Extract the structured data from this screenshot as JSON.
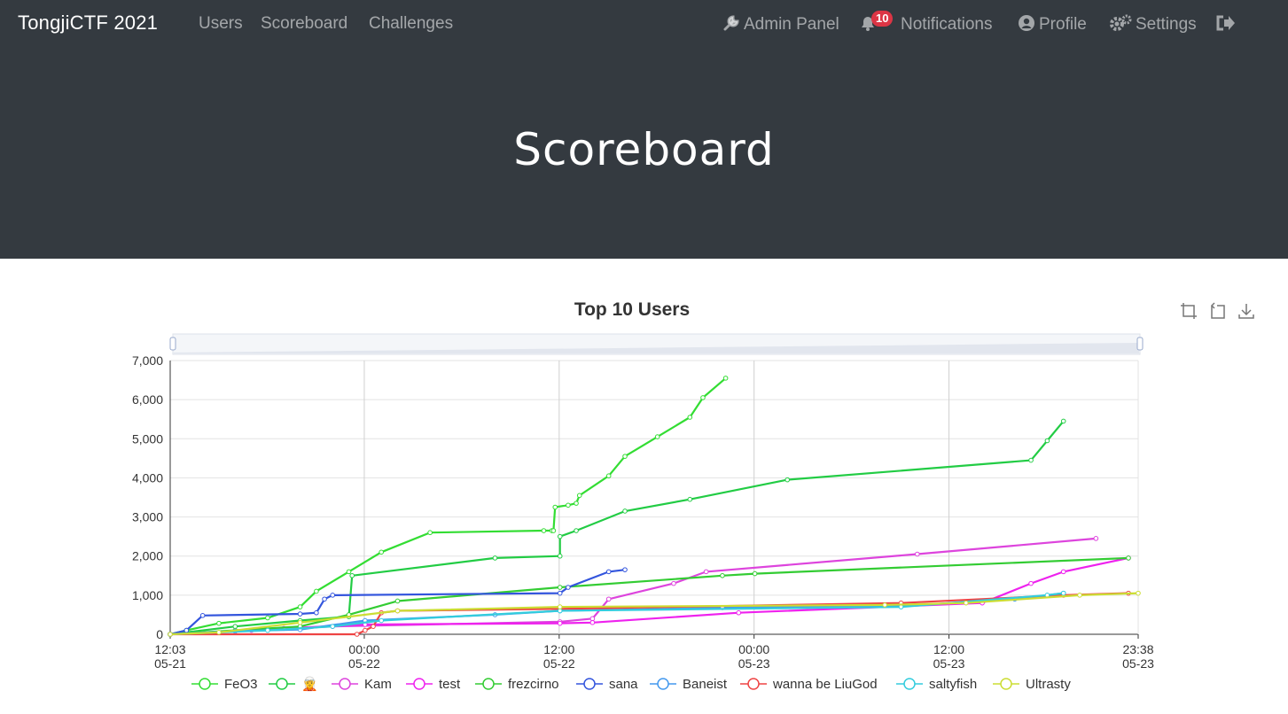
{
  "nav": {
    "brand": "TongjiCTF 2021",
    "links": [
      {
        "label": "Users"
      },
      {
        "label": "Scoreboard"
      },
      {
        "label": "Challenges"
      }
    ],
    "right": {
      "admin": "Admin Panel",
      "notifications": "Notifications",
      "notifications_count": "10",
      "profile": "Profile",
      "settings": "Settings"
    }
  },
  "hero": {
    "title": "Scoreboard"
  },
  "chart_data": {
    "type": "line",
    "title": "Top 10 Users",
    "ylim": [
      0,
      7000
    ],
    "yticks": [
      "0",
      "1,000",
      "2,000",
      "3,000",
      "4,000",
      "5,000",
      "6,000",
      "7,000"
    ],
    "xticks": [
      {
        "time": "12:03",
        "date": "05-21"
      },
      {
        "time": "00:00",
        "date": "05-22"
      },
      {
        "time": "12:00",
        "date": "05-22"
      },
      {
        "time": "00:00",
        "date": "05-23"
      },
      {
        "time": "12:00",
        "date": "05-23"
      },
      {
        "time": "23:38",
        "date": "05-23"
      }
    ],
    "x_unit": "hours after 05-21 12:03",
    "xlim": [
      0,
      59.6
    ],
    "grid": true,
    "legend_position": "bottom",
    "series": [
      {
        "name": "FeO3",
        "color": "#33dd33",
        "points": [
          [
            0,
            0
          ],
          [
            1,
            100
          ],
          [
            3,
            280
          ],
          [
            6,
            420
          ],
          [
            8,
            700
          ],
          [
            9,
            1100
          ],
          [
            11,
            1600
          ],
          [
            13,
            2100
          ],
          [
            16,
            2600
          ],
          [
            23,
            2650
          ],
          [
            23.5,
            2650
          ],
          [
            23.6,
            2650
          ],
          [
            23.7,
            3250
          ],
          [
            24.5,
            3300
          ],
          [
            25,
            3350
          ],
          [
            25.2,
            3550
          ],
          [
            27,
            4050
          ],
          [
            28,
            4550
          ],
          [
            30,
            5050
          ],
          [
            32,
            5550
          ],
          [
            32.8,
            6050
          ],
          [
            34.2,
            6550
          ]
        ]
      },
      {
        "name": "🧝",
        "color": "#22cc44",
        "points": [
          [
            0,
            0
          ],
          [
            4,
            200
          ],
          [
            8,
            350
          ],
          [
            11,
            450
          ],
          [
            11.2,
            1500
          ],
          [
            20,
            1950
          ],
          [
            24,
            2000
          ],
          [
            24,
            2500
          ],
          [
            25,
            2650
          ],
          [
            28,
            3150
          ],
          [
            32,
            3450
          ],
          [
            38,
            3950
          ],
          [
            53,
            4450
          ],
          [
            54,
            4950
          ],
          [
            55,
            5450
          ]
        ]
      },
      {
        "name": "Kam",
        "color": "#dd44dd",
        "points": [
          [
            0,
            0
          ],
          [
            5,
            100
          ],
          [
            10,
            200
          ],
          [
            24,
            320
          ],
          [
            26,
            400
          ],
          [
            27,
            900
          ],
          [
            31,
            1300
          ],
          [
            33,
            1600
          ],
          [
            46,
            2050
          ],
          [
            57,
            2450
          ]
        ]
      },
      {
        "name": "test",
        "color": "#ee22ee",
        "points": [
          [
            0,
            0
          ],
          [
            7,
            150
          ],
          [
            12,
            250
          ],
          [
            24,
            280
          ],
          [
            26,
            300
          ],
          [
            35,
            550
          ],
          [
            50,
            800
          ],
          [
            53,
            1300
          ],
          [
            55,
            1600
          ],
          [
            59,
            1950
          ]
        ]
      },
      {
        "name": "frezcirno",
        "color": "#33cc33",
        "points": [
          [
            0,
            0
          ],
          [
            4,
            100
          ],
          [
            8,
            200
          ],
          [
            11,
            500
          ],
          [
            14,
            850
          ],
          [
            24,
            1200
          ],
          [
            34,
            1500
          ],
          [
            36,
            1550
          ],
          [
            59,
            1950
          ]
        ]
      },
      {
        "name": "sana",
        "color": "#3355dd",
        "points": [
          [
            0,
            0
          ],
          [
            1,
            100
          ],
          [
            2,
            480
          ],
          [
            8,
            520
          ],
          [
            9,
            550
          ],
          [
            9.5,
            900
          ],
          [
            10,
            1000
          ],
          [
            24,
            1050
          ],
          [
            24.5,
            1200
          ],
          [
            27,
            1600
          ],
          [
            28,
            1650
          ]
        ]
      },
      {
        "name": "Baneist",
        "color": "#4499ee",
        "points": [
          [
            0,
            0
          ],
          [
            4,
            80
          ],
          [
            8,
            120
          ],
          [
            12,
            350
          ],
          [
            20,
            500
          ],
          [
            24,
            600
          ],
          [
            34,
            680
          ],
          [
            45,
            720
          ],
          [
            52,
            900
          ],
          [
            55,
            1050
          ]
        ]
      },
      {
        "name": "wanna be LiuGod",
        "color": "#ee4444",
        "points": [
          [
            0,
            0
          ],
          [
            11.5,
            0
          ],
          [
            12,
            100
          ],
          [
            12.5,
            200
          ],
          [
            13,
            550
          ],
          [
            14,
            600
          ],
          [
            24,
            650
          ],
          [
            45,
            800
          ],
          [
            55,
            1000
          ],
          [
            59,
            1050
          ]
        ]
      },
      {
        "name": "saltyfish",
        "color": "#33ccdd",
        "points": [
          [
            0,
            0
          ],
          [
            6,
            100
          ],
          [
            10,
            200
          ],
          [
            13,
            350
          ],
          [
            24,
            600
          ],
          [
            45,
            700
          ],
          [
            54,
            1000
          ],
          [
            55,
            1050
          ]
        ]
      },
      {
        "name": "Ultrasty",
        "color": "#ccdd33",
        "points": [
          [
            0,
            0
          ],
          [
            3,
            50
          ],
          [
            8,
            300
          ],
          [
            14,
            600
          ],
          [
            24,
            700
          ],
          [
            44,
            750
          ],
          [
            49,
            800
          ],
          [
            56,
            1000
          ],
          [
            59.6,
            1050
          ]
        ]
      }
    ]
  }
}
